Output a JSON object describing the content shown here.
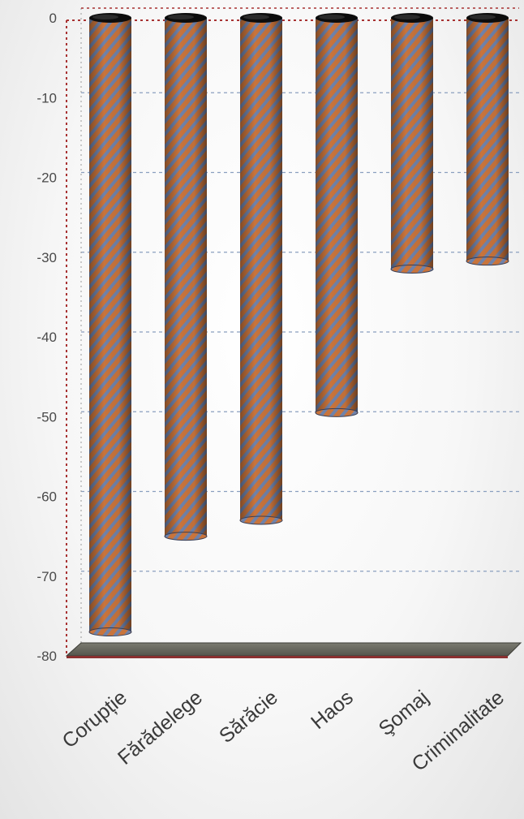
{
  "chart_data": {
    "type": "bar",
    "categories": [
      "Corupție",
      "Fărădelege",
      "Sărăcie",
      "Haos",
      "Şomaj",
      "Criminalitate"
    ],
    "values": [
      -77,
      -65,
      -63,
      -49.5,
      -31.5,
      -30.5
    ],
    "yticks": [
      "0",
      "-10",
      "-20",
      "-30",
      "-40",
      "-50",
      "-60",
      "-70",
      "-80"
    ],
    "ylim": [
      -80,
      0
    ],
    "grid": true,
    "title": "",
    "xlabel": "",
    "ylabel": "",
    "colors": {
      "bar_orange": "#c8743c",
      "bar_blue": "#6f82aa",
      "floor": "#6b6b62",
      "frame": "#a83232",
      "grid": "#8a9fbf"
    }
  }
}
